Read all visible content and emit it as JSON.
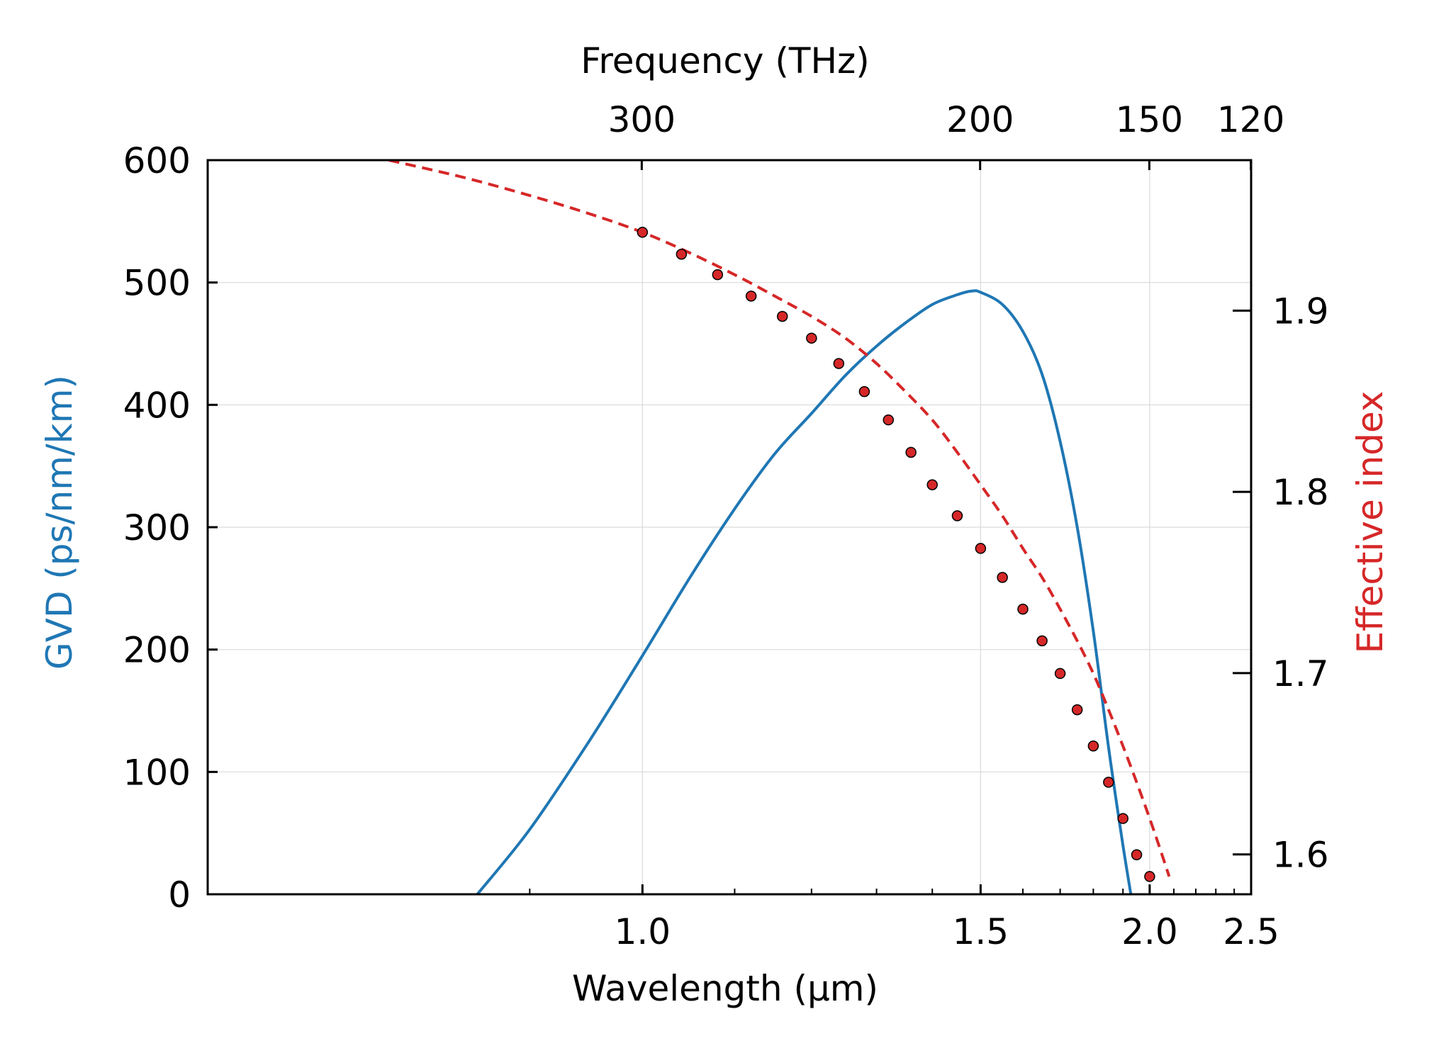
{
  "chart_data": {
    "type": "line",
    "xlabel": "Wavelength (μm)",
    "x_top_label": "Frequency (THz)",
    "ylabel_left": "GVD (ps/nm/km)",
    "ylabel_right": "Effective index",
    "xlim": [
      0.7,
      2.5
    ],
    "ylim_left": [
      0,
      600
    ],
    "ylim_right": [
      1.578,
      1.983
    ],
    "xscale": "reciprocal",
    "x_ticks": [
      "1.0",
      "1.5",
      "2.0",
      "2.5"
    ],
    "x_tick_values": [
      1.0,
      1.5,
      2.0,
      2.5
    ],
    "x_minor_ticks": [
      0.9,
      1.1,
      1.2,
      1.3,
      1.4,
      1.6,
      1.7,
      1.8,
      1.9,
      2.1,
      2.2,
      2.3,
      2.4
    ],
    "x_top_ticks": [
      "300",
      "200",
      "150",
      "120"
    ],
    "x_top_tick_values": [
      300,
      200,
      150,
      120
    ],
    "y_left_ticks": [
      "0",
      "100",
      "200",
      "300",
      "400",
      "500",
      "600"
    ],
    "y_left_tick_values": [
      0,
      100,
      200,
      300,
      400,
      500,
      600
    ],
    "y_right_ticks": [
      "1.6",
      "1.7",
      "1.8",
      "1.9"
    ],
    "y_right_tick_values": [
      1.6,
      1.7,
      1.8,
      1.9
    ],
    "grid": true,
    "colors": {
      "gvd": "#1f77b4",
      "neff": "#d62728",
      "marker_edge": "#000000"
    },
    "series": [
      {
        "axis": "left",
        "style": "solid",
        "x": [
          0.86,
          0.9,
          0.95,
          1.0,
          1.05,
          1.1,
          1.15,
          1.2,
          1.25,
          1.3,
          1.35,
          1.4,
          1.45,
          1.48,
          1.5,
          1.55,
          1.6,
          1.65,
          1.7,
          1.75,
          1.8,
          1.85,
          1.9,
          1.95,
          1.98
        ],
        "values": [
          0,
          53,
          125,
          195,
          260,
          315,
          360,
          393,
          424,
          448,
          467,
          482,
          490,
          493,
          492,
          482,
          460,
          425,
          370,
          300,
          215,
          120,
          40,
          -30,
          -80
        ]
      },
      {
        "axis": "right",
        "style": "dashed",
        "x": [
          0.8,
          0.85,
          0.9,
          0.95,
          1.0,
          1.05,
          1.1,
          1.15,
          1.2,
          1.25,
          1.3,
          1.35,
          1.4,
          1.45,
          1.5,
          1.55,
          1.6,
          1.65,
          1.7,
          1.75,
          1.8,
          1.85,
          1.9,
          1.95,
          2.0,
          2.05,
          2.08
        ],
        "values": [
          1.983,
          1.9735,
          1.9635,
          1.9535,
          1.9432,
          1.9316,
          1.9198,
          1.908,
          1.8968,
          1.8848,
          1.8708,
          1.8553,
          1.8397,
          1.8218,
          1.8039,
          1.7868,
          1.7688,
          1.7528,
          1.7353,
          1.7178,
          1.6998,
          1.6798,
          1.6598,
          1.6398,
          1.6198,
          1.5998,
          1.5878
        ]
      },
      {
        "axis": "right",
        "style": "markers",
        "x": [
          1.0,
          1.04,
          1.08,
          1.12,
          1.16,
          1.2,
          1.24,
          1.28,
          1.32,
          1.36,
          1.4,
          1.45,
          1.5,
          1.55,
          1.6,
          1.65,
          1.7,
          1.75,
          1.8,
          1.85,
          1.9,
          1.95,
          2.0
        ],
        "values": [
          1.9432,
          1.9311,
          1.9198,
          1.908,
          1.8968,
          1.8848,
          1.8708,
          1.8553,
          1.8397,
          1.8218,
          1.8039,
          1.7868,
          1.7688,
          1.7528,
          1.7353,
          1.7178,
          1.6998,
          1.6798,
          1.6598,
          1.6398,
          1.6198,
          1.5998,
          1.5878
        ]
      }
    ]
  }
}
